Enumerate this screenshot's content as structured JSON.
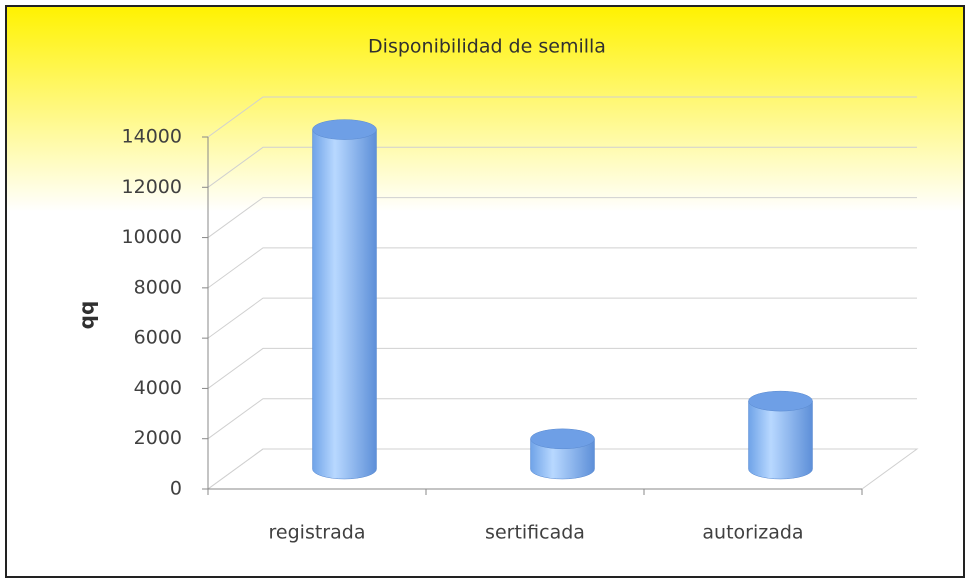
{
  "chart_data": {
    "type": "bar3d",
    "title": "Disponibilidad de semilla",
    "ylabel": "qq",
    "categories": [
      "registrada",
      "sertificada",
      "autorizada"
    ],
    "values": [
      13500,
      1200,
      2700
    ],
    "color": "#8ab8f5",
    "ylim": [
      0,
      14000
    ],
    "yticks": [
      0,
      2000,
      4000,
      6000,
      8000,
      10000,
      12000,
      14000
    ],
    "grid": true
  }
}
